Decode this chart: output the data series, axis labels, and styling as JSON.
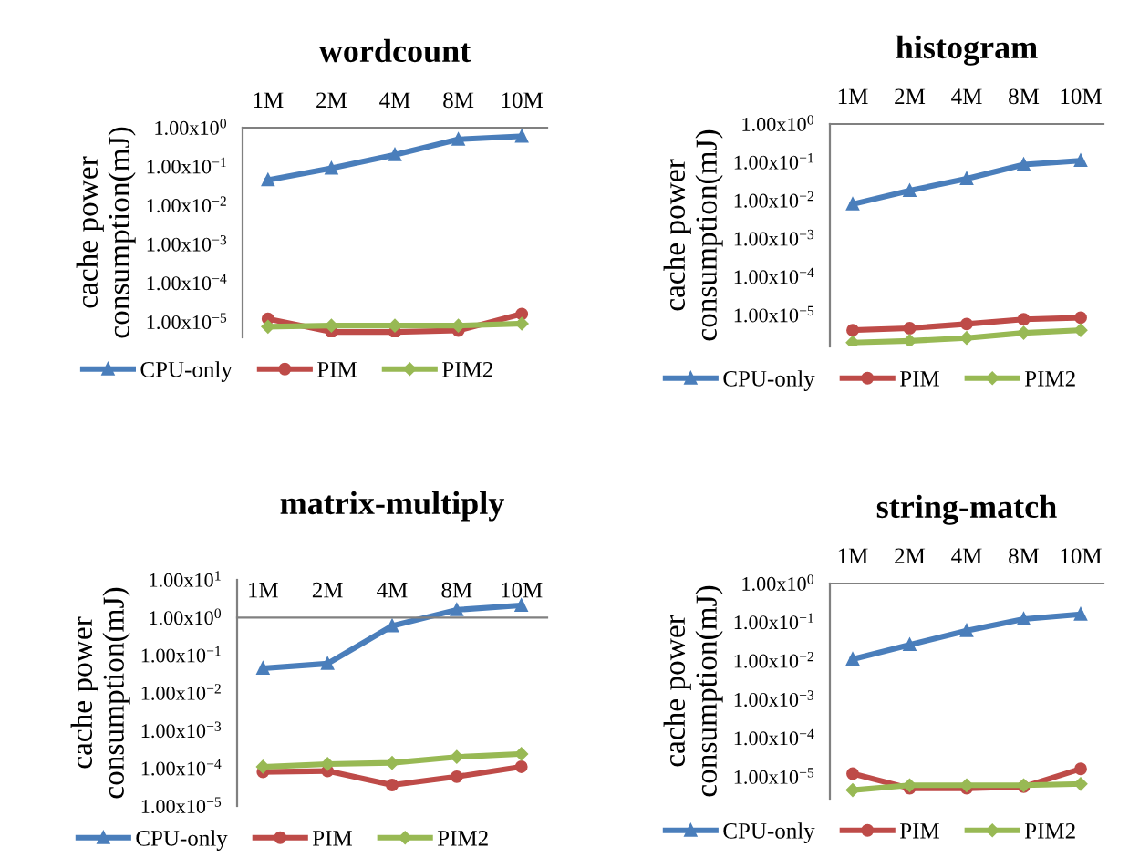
{
  "chart_data": [
    {
      "type": "line",
      "title": "wordcount",
      "ylabel": "cache power\nconsumption(mJ)",
      "categories": [
        "1M",
        "2M",
        "4M",
        "8M",
        "10M"
      ],
      "log": true,
      "ylim": [
        4e-06,
        1
      ],
      "yticks": [
        {
          "value": 1,
          "label": "1.00x10$^{0}$"
        },
        {
          "value": 0.1,
          "label": "1.00x10$^{−1}$"
        },
        {
          "value": 0.01,
          "label": "1.00x10$^{−2}$"
        },
        {
          "value": 0.001,
          "label": "1.00x10$^{−3}$"
        },
        {
          "value": 0.0001,
          "label": "1.00x10$^{−4}$"
        },
        {
          "value": 1e-05,
          "label": "1.00x10$^{−5}$"
        }
      ],
      "grid": false,
      "legend": "bottom",
      "series": [
        {
          "name": "CPU-only",
          "color": "#4a7ebb",
          "marker": "triangle",
          "values": [
            0.045,
            0.09,
            0.2,
            0.5,
            0.6
          ]
        },
        {
          "name": "PIM",
          "color": "#be4b48",
          "marker": "circle",
          "values": [
            1.2e-05,
            5.5e-06,
            5.5e-06,
            6e-06,
            1.6e-05
          ]
        },
        {
          "name": "PIM2",
          "color": "#98b954",
          "marker": "diamond",
          "values": [
            7.5e-06,
            8e-06,
            8e-06,
            8e-06,
            9e-06
          ]
        }
      ]
    },
    {
      "type": "line",
      "title": "histogram",
      "ylabel": "cache power\nconsumption(mJ)",
      "categories": [
        "1M",
        "2M",
        "4M",
        "8M",
        "10M"
      ],
      "log": true,
      "ylim": [
        1.5e-06,
        1
      ],
      "yticks": [
        {
          "value": 1,
          "label": "1.00x10$^{0}$"
        },
        {
          "value": 0.1,
          "label": "1.00x10$^{−1}$"
        },
        {
          "value": 0.01,
          "label": "1.00x10$^{−2}$"
        },
        {
          "value": 0.001,
          "label": "1.00x10$^{−3}$"
        },
        {
          "value": 0.0001,
          "label": "1.00x10$^{−4}$"
        },
        {
          "value": 1e-05,
          "label": "1.00x10$^{−5}$"
        }
      ],
      "grid": false,
      "legend": "bottom",
      "series": [
        {
          "name": "CPU-only",
          "color": "#4a7ebb",
          "marker": "triangle",
          "values": [
            0.008,
            0.018,
            0.037,
            0.087,
            0.11
          ]
        },
        {
          "name": "PIM",
          "color": "#be4b48",
          "marker": "circle",
          "values": [
            4e-06,
            4.5e-06,
            5.8e-06,
            7.7e-06,
            8.5e-06
          ]
        },
        {
          "name": "PIM2",
          "color": "#98b954",
          "marker": "diamond",
          "values": [
            1.9e-06,
            2.1e-06,
            2.5e-06,
            3.4e-06,
            4e-06
          ]
        }
      ]
    },
    {
      "type": "line",
      "title": "matrix-multiply",
      "ylabel": "cache power\nconsumption(mJ)",
      "categories": [
        "1M",
        "2M",
        "4M",
        "8M",
        "10M"
      ],
      "log": true,
      "ylim": [
        1e-05,
        10
      ],
      "yticks": [
        {
          "value": 10,
          "label": "1.00x10$^{1}$"
        },
        {
          "value": 1,
          "label": "1.00x10$^{0}$"
        },
        {
          "value": 0.1,
          "label": "1.00x10$^{−1}$"
        },
        {
          "value": 0.01,
          "label": "1.00x10$^{−2}$"
        },
        {
          "value": 0.001,
          "label": "1.00x10$^{−3}$"
        },
        {
          "value": 0.0001,
          "label": "1.00x10$^{−4}$"
        },
        {
          "value": 1e-05,
          "label": "1.00x10$^{−5}$"
        }
      ],
      "grid": false,
      "legend": "bottom",
      "series": [
        {
          "name": "CPU-only",
          "color": "#4a7ebb",
          "marker": "triangle",
          "values": [
            0.045,
            0.06,
            0.6,
            1.6,
            2.1
          ]
        },
        {
          "name": "PIM",
          "color": "#be4b48",
          "marker": "circle",
          "values": [
            8e-05,
            8.5e-05,
            3.6e-05,
            6e-05,
            0.00011
          ]
        },
        {
          "name": "PIM2",
          "color": "#98b954",
          "marker": "diamond",
          "values": [
            0.00011,
            0.00013,
            0.00014,
            0.0002,
            0.00024
          ]
        }
      ]
    },
    {
      "type": "line",
      "title": "string-match",
      "ylabel": "cache power\nconsumption(mJ)",
      "categories": [
        "1M",
        "2M",
        "4M",
        "8M",
        "10M"
      ],
      "log": true,
      "ylim": [
        2.7e-06,
        1
      ],
      "yticks": [
        {
          "value": 1,
          "label": "1.00x10$^{0}$"
        },
        {
          "value": 0.1,
          "label": "1.00x10$^{−1}$"
        },
        {
          "value": 0.01,
          "label": "1.00x10$^{−2}$"
        },
        {
          "value": 0.001,
          "label": "1.00x10$^{−3}$"
        },
        {
          "value": 0.0001,
          "label": "1.00x10$^{−4}$"
        },
        {
          "value": 1e-05,
          "label": "1.00x10$^{−5}$"
        }
      ],
      "grid": false,
      "legend": "bottom",
      "series": [
        {
          "name": "CPU-only",
          "color": "#4a7ebb",
          "marker": "triangle",
          "values": [
            0.011,
            0.026,
            0.06,
            0.12,
            0.16
          ]
        },
        {
          "name": "PIM",
          "color": "#be4b48",
          "marker": "circle",
          "values": [
            1.2e-05,
            5e-06,
            5e-06,
            5.5e-06,
            1.6e-05
          ]
        },
        {
          "name": "PIM2",
          "color": "#98b954",
          "marker": "diamond",
          "values": [
            4.5e-06,
            6e-06,
            6e-06,
            6e-06,
            6.5e-06
          ]
        }
      ]
    }
  ]
}
